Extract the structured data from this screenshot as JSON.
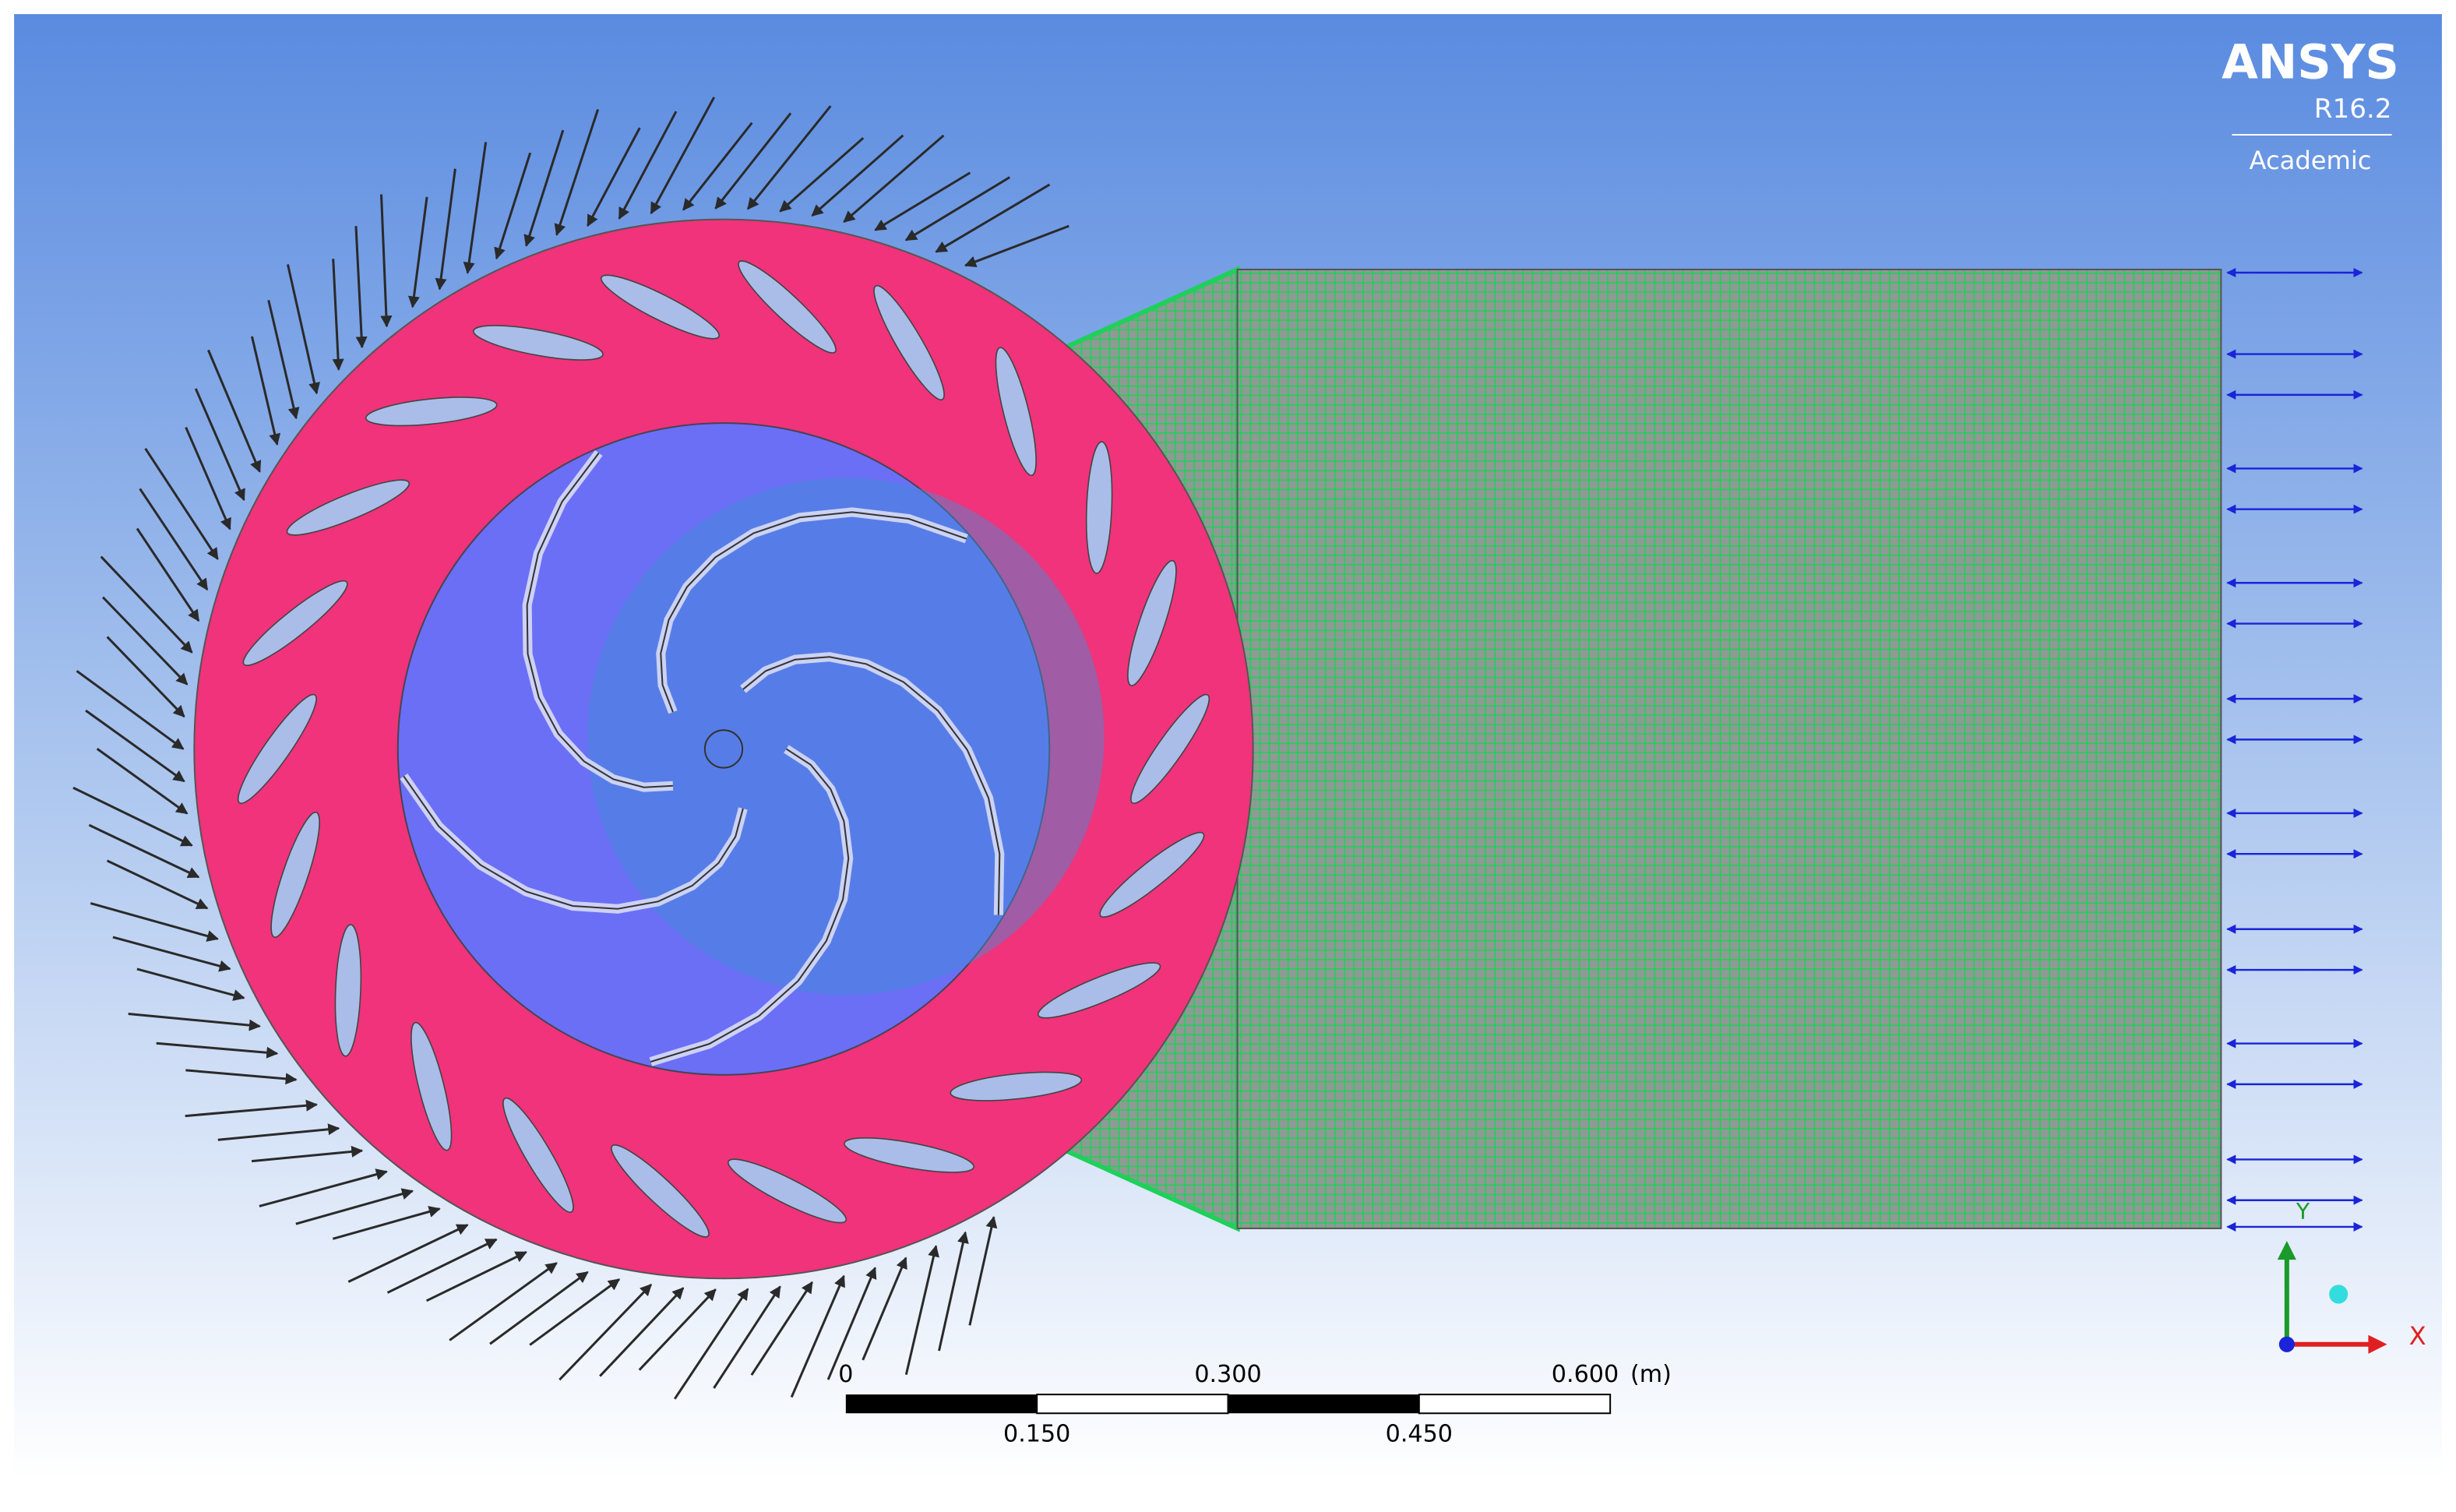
{
  "logo": {
    "name": "ANSYS",
    "version": "R16.2",
    "edition": "Academic"
  },
  "scale_bar": {
    "top_labels": [
      "0",
      "0.300",
      "0.600"
    ],
    "unit": "(m)",
    "bottom_labels": [
      "0.150",
      "0.450"
    ]
  },
  "triad": {
    "y_label": "Y",
    "x_label": "X"
  }
}
